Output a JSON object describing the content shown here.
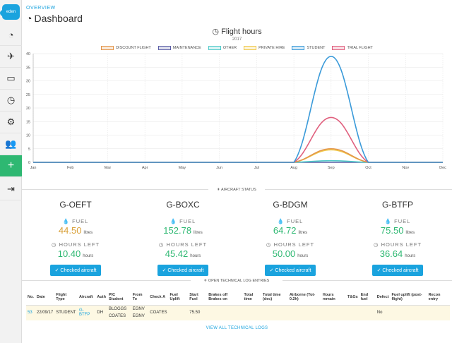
{
  "app": {
    "logo_text": "eden"
  },
  "sidebar": {
    "items": [
      {
        "name": "dashboard",
        "glyph": "◔"
      },
      {
        "name": "flights",
        "glyph": "✈"
      },
      {
        "name": "billing",
        "glyph": "▭"
      },
      {
        "name": "logs",
        "glyph": "◷"
      },
      {
        "name": "settings",
        "glyph": "⚙"
      },
      {
        "name": "users",
        "glyph": "👥"
      },
      {
        "name": "add",
        "glyph": "+"
      },
      {
        "name": "logout",
        "glyph": "⇥"
      }
    ]
  },
  "header": {
    "overline": "OVERVIEW",
    "title": "Dashboard"
  },
  "chart_data": {
    "type": "line",
    "title": "Flight hours",
    "subtitle": "2017",
    "categories": [
      "Jan",
      "Feb",
      "Mar",
      "Apr",
      "May",
      "Jun",
      "Jul",
      "Aug",
      "Sep",
      "Oct",
      "Nov",
      "Dec"
    ],
    "ylim": [
      0,
      40
    ],
    "yticks": [
      0,
      5,
      10,
      15,
      20,
      25,
      30,
      35,
      40
    ],
    "grid": true,
    "legend_position": "top",
    "series": [
      {
        "name": "DISCOUNT FLIGHT",
        "color": "#e3954a",
        "values": [
          0,
          0,
          0,
          0,
          0,
          0,
          0,
          0,
          5,
          0,
          0,
          0
        ]
      },
      {
        "name": "MAINTENANCE",
        "color": "#5b5ea6",
        "values": [
          0,
          0,
          0,
          0,
          0,
          0,
          0,
          0,
          0,
          0,
          0,
          0
        ]
      },
      {
        "name": "OTHER",
        "color": "#4ec9c9",
        "values": [
          0,
          0,
          0,
          0,
          0,
          0,
          0,
          0,
          0.6,
          0,
          0,
          0
        ]
      },
      {
        "name": "PRIVATE HIRE",
        "color": "#f0c84a",
        "values": [
          0,
          0,
          0,
          0,
          0,
          0,
          0,
          0,
          4.6,
          0,
          0,
          0
        ]
      },
      {
        "name": "STUDENT",
        "color": "#3a9ad9",
        "values": [
          0,
          0,
          0,
          0,
          0,
          0,
          0,
          0,
          39,
          0,
          0,
          0
        ]
      },
      {
        "name": "TRIAL FLIGHT",
        "color": "#e0607e",
        "values": [
          0,
          0,
          0,
          0,
          0,
          0,
          0,
          0,
          16.5,
          0,
          0,
          0
        ]
      }
    ]
  },
  "aircraft_status": {
    "label": "AIRCRAFT STATUS",
    "fuel_label": "FUEL",
    "hours_label": "HOURS LEFT",
    "fuel_unit": "litres",
    "hours_unit": "hours",
    "button_label": "✓ Checked aircraft",
    "aircraft": [
      {
        "reg": "G-OEFT",
        "fuel": "44.50",
        "fuel_color": "#d9a13a",
        "hours": "10.40",
        "hours_color": "#2eb872"
      },
      {
        "reg": "G-BOXC",
        "fuel": "152.78",
        "fuel_color": "#2eb872",
        "hours": "45.42",
        "hours_color": "#2eb872"
      },
      {
        "reg": "G-BDGM",
        "fuel": "64.72",
        "fuel_color": "#2eb872",
        "hours": "50.00",
        "hours_color": "#2eb872"
      },
      {
        "reg": "G-BTFP",
        "fuel": "75.50",
        "fuel_color": "#2eb872",
        "hours": "36.64",
        "hours_color": "#2eb872"
      }
    ]
  },
  "tech_log": {
    "label": "OPEN TECHNICAL LOG ENTRIES",
    "columns": [
      "No.",
      "Date",
      "Flight Type",
      "Aircraft",
      "Auth",
      "PIC Student",
      "From To",
      "Check A",
      "Fuel Uplift",
      "Start Fuel",
      "Brakes off Brakes on",
      "Total time",
      "Total time (dec)",
      "Airborne (Tot-0.2h)",
      "Hours remain",
      "T&Gs",
      "End fuel",
      "Defect",
      "Fuel uplift (post-flight)",
      "Recon entry"
    ],
    "rows": [
      {
        "no": "53",
        "date": "22/09/17",
        "type": "STUDENT",
        "aircraft": "G-BTFP",
        "auth": "DH",
        "pic": "BLOGGS",
        "student": "COATES",
        "from": "EGNV",
        "to": "EGNV",
        "check": "COATES",
        "uplift": "",
        "start_fuel": "75.50",
        "defect": "No"
      }
    ],
    "view_all": "VIEW ALL TECHNICAL LOGS"
  }
}
